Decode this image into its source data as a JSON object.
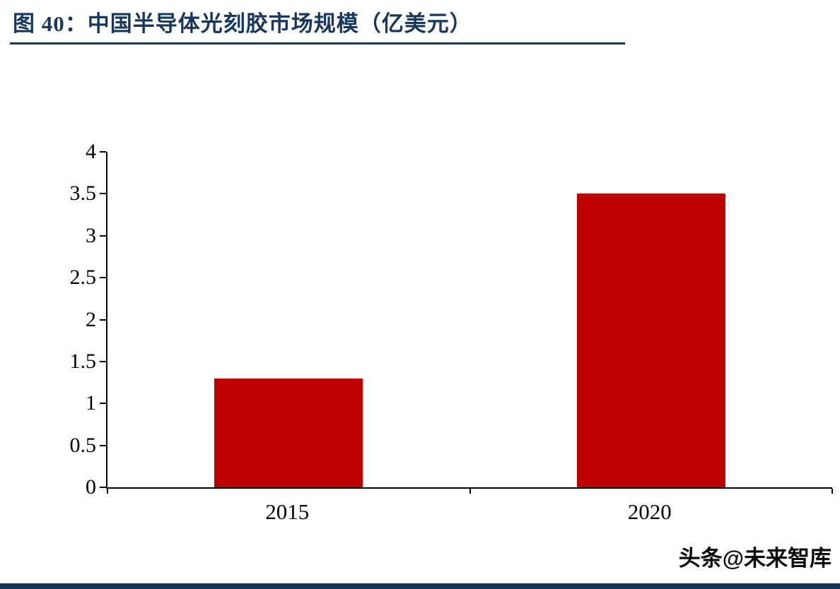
{
  "figure": {
    "title": "图 40：中国半导体光刻胶市场规模（亿美元）",
    "watermark": "头条@未来智库"
  },
  "colors": {
    "bar": "#C00000",
    "title_text": "#17375E",
    "title_underline": "#17375E",
    "axis": "#000000",
    "bottom_bar": "#16365C",
    "background": "#FFFFFF"
  },
  "chart_data": {
    "type": "bar",
    "figure_label": "图 40",
    "title": "中国半导体光刻胶市场规模（亿美元）",
    "unit": "亿美元",
    "categories": [
      "2015",
      "2020"
    ],
    "values": [
      1.3,
      3.5
    ],
    "xlabel": "",
    "ylabel": "",
    "ylim": [
      0,
      4
    ],
    "yticks": [
      0,
      0.5,
      1,
      1.5,
      2,
      2.5,
      3,
      3.5,
      4
    ],
    "grid": false,
    "legend": false,
    "bar_color": "#C00000"
  }
}
